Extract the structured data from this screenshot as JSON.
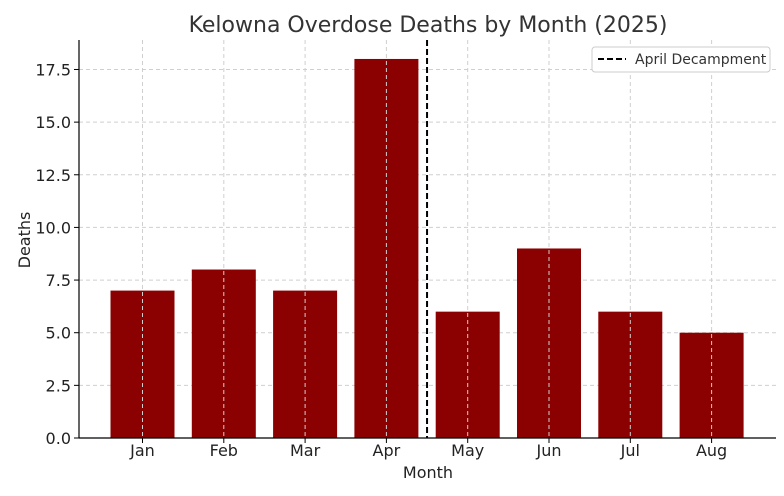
{
  "chart_data": {
    "type": "bar",
    "title": "Kelowna Overdose Deaths by Month (2025)",
    "xlabel": "Month",
    "ylabel": "Deaths",
    "categories": [
      "Jan",
      "Feb",
      "Mar",
      "Apr",
      "May",
      "Jun",
      "Jul",
      "Aug"
    ],
    "values": [
      7,
      8,
      7,
      18,
      6,
      9,
      6,
      5
    ],
    "ylim": [
      0,
      18.9
    ],
    "yticks": [
      "0.0",
      "2.5",
      "5.0",
      "7.5",
      "10.0",
      "12.5",
      "15.0",
      "17.5"
    ],
    "bar_color": "#8b0000",
    "grid": true,
    "reference_line": {
      "type": "vertical-dashed",
      "between": [
        "Apr",
        "May"
      ],
      "label": "April Decampment",
      "color": "#000000"
    },
    "legend": {
      "position": "top-right",
      "entries": [
        "April Decampment"
      ]
    }
  }
}
